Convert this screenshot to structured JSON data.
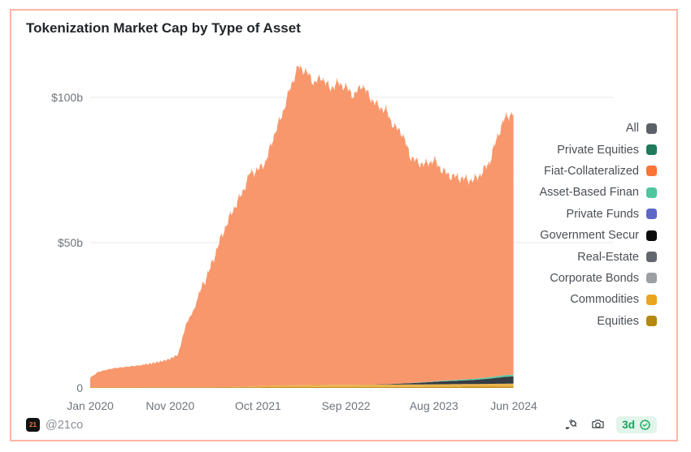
{
  "card": {
    "title": "Tokenization Market Cap by Type of Asset"
  },
  "chart_data": {
    "type": "area",
    "stacked": true,
    "title": "Tokenization Market Cap by Type of Asset",
    "x_start": "Jan 2020",
    "x_end": "Jun 2024",
    "x_interval": "month",
    "n_points": 54,
    "x_ticks": [
      {
        "m": 0,
        "label": "Jan 2020"
      },
      {
        "m": 10,
        "label": "Nov 2020"
      },
      {
        "m": 21,
        "label": "Oct 2021"
      },
      {
        "m": 32,
        "label": "Sep 2022"
      },
      {
        "m": 43,
        "label": "Aug 2023"
      },
      {
        "m": 53,
        "label": "Jun 2024"
      }
    ],
    "y_ticks": [
      {
        "value": 0,
        "label": "0"
      },
      {
        "value": 50,
        "label": "$50b"
      },
      {
        "value": 100,
        "label": "$100b"
      }
    ],
    "ylim": [
      0,
      115
    ],
    "unit": "billions USD",
    "grid": "horizontal",
    "totals_name": "All (total tokenized market cap, $b, monthly Jan 2020 - Jun 2024)",
    "totals": [
      3.5,
      5.5,
      6.2,
      6.8,
      7.1,
      7.4,
      7.7,
      8.1,
      8.6,
      9.2,
      10,
      11.5,
      22,
      27,
      35,
      41,
      49,
      56,
      62,
      67,
      74,
      75,
      78,
      87,
      94,
      103,
      110.5,
      109,
      105,
      107,
      103,
      105,
      103.5,
      100.5,
      104.5,
      100,
      97,
      95.5,
      90,
      88,
      80,
      77.5,
      77,
      78.5,
      75,
      73,
      72.5,
      71.8,
      71.5,
      74,
      78,
      87,
      93.5,
      94.3
    ],
    "series": [
      {
        "name": "Equities",
        "color": "#C28A12",
        "values": [
          0.15,
          0.16,
          0.16,
          0.17,
          0.17,
          0.18,
          0.18,
          0.19,
          0.19,
          0.2,
          0.2,
          0.21,
          0.22,
          0.22,
          0.23,
          0.23,
          0.24,
          0.24,
          0.25,
          0.25,
          0.26,
          0.26,
          0.27,
          0.27,
          0.28,
          0.28,
          0.29,
          0.29,
          0.3,
          0.3,
          0.31,
          0.31,
          0.32,
          0.32,
          0.33,
          0.33,
          0.34,
          0.34,
          0.35,
          0.35,
          0.36,
          0.37,
          0.38,
          0.38,
          0.39,
          0.4,
          0.4,
          0.41,
          0.42,
          0.42,
          0.43,
          0.44,
          0.44,
          0.45
        ]
      },
      {
        "name": "Commodities",
        "color": "#EAB44C",
        "values": [
          0,
          0,
          0,
          0,
          0,
          0,
          0,
          0,
          0,
          0,
          0,
          0,
          0,
          0,
          0,
          0,
          0,
          0,
          0.1,
          0.15,
          0.2,
          0.3,
          0.4,
          0.5,
          0.55,
          0.6,
          0.62,
          0.65,
          0.67,
          0.7,
          0.72,
          0.74,
          0.75,
          0.76,
          0.77,
          0.78,
          0.79,
          0.8,
          0.8,
          0.81,
          0.82,
          0.83,
          0.84,
          0.85,
          0.86,
          0.87,
          0.88,
          0.9,
          0.92,
          0.94,
          0.96,
          0.98,
          1,
          1
        ]
      },
      {
        "name": "Government Securities",
        "color": "#353C43",
        "values": [
          0,
          0,
          0,
          0,
          0,
          0,
          0,
          0,
          0,
          0,
          0,
          0,
          0,
          0,
          0,
          0,
          0,
          0,
          0,
          0,
          0,
          0,
          0,
          0,
          0,
          0,
          0,
          0,
          0,
          0,
          0,
          0,
          0,
          0,
          0,
          0,
          0.1,
          0.15,
          0.25,
          0.35,
          0.45,
          0.55,
          0.7,
          0.85,
          1,
          1.1,
          1.2,
          1.3,
          1.4,
          1.6,
          1.8,
          2.1,
          2.4,
          2.5
        ]
      },
      {
        "name": "Asset-Based Finance",
        "color": "#5BC7A2",
        "values": [
          0,
          0,
          0,
          0,
          0,
          0,
          0,
          0,
          0,
          0,
          0,
          0,
          0,
          0,
          0,
          0,
          0,
          0,
          0,
          0,
          0,
          0,
          0,
          0,
          0,
          0,
          0,
          0,
          0,
          0,
          0,
          0,
          0,
          0,
          0,
          0,
          0,
          0,
          0,
          0,
          0.05,
          0.08,
          0.1,
          0.15,
          0.2,
          0.25,
          0.3,
          0.35,
          0.4,
          0.45,
          0.5,
          0.55,
          0.6,
          0.62
        ]
      },
      {
        "name": "Fiat-Collateralized",
        "color": "#F9976C",
        "mode": "remainder-to-total"
      }
    ]
  },
  "legend": {
    "items": [
      {
        "label": "All",
        "color": "#5B6167"
      },
      {
        "label": "Private Equities",
        "color": "#1F7A5C"
      },
      {
        "label": "Fiat-Collateralized",
        "color": "#F97435"
      },
      {
        "label": "Asset-Based Finan",
        "color": "#4FC69E"
      },
      {
        "label": "Private Funds",
        "color": "#5C68C7"
      },
      {
        "label": "Government Secur",
        "color": "#0A0A0A"
      },
      {
        "label": "Real-Estate",
        "color": "#63686E"
      },
      {
        "label": "Corporate Bonds",
        "color": "#9CA0A5"
      },
      {
        "label": "Commodities",
        "color": "#E9A51F"
      },
      {
        "label": "Equities",
        "color": "#B5870F"
      }
    ]
  },
  "footer": {
    "logo_text": "21",
    "handle": "@21co",
    "badge_label": "3d",
    "icons": [
      "plug-icon",
      "camera-icon",
      "verified-badge-icon"
    ]
  },
  "colors": {
    "card_border": "#FFB5A3",
    "gridline": "#ECECEC",
    "axis_label": "#6E757C",
    "title_text": "#21262B",
    "area_fill": "#F9976C",
    "badge_bg": "#E2F5EA",
    "badge_text": "#17A45C"
  }
}
